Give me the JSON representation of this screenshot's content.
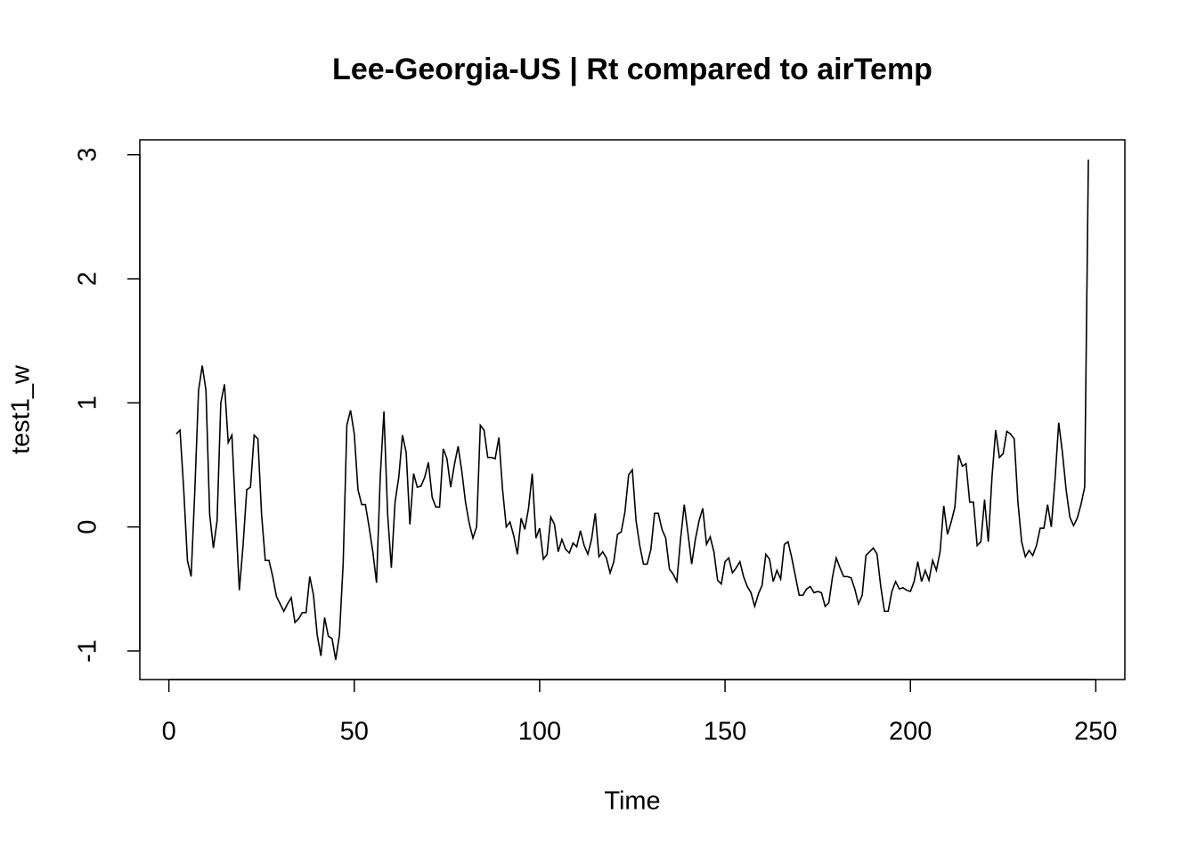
{
  "chart_data": {
    "type": "line",
    "title": "Lee-Georgia-US | Rt compared to airTemp",
    "xlabel": "Time",
    "ylabel": "test1_w",
    "x": [
      2,
      3,
      4,
      5,
      6,
      7,
      8,
      9,
      10,
      11,
      12,
      13,
      14,
      15,
      16,
      17,
      18,
      19,
      20,
      21,
      22,
      23,
      24,
      25,
      26,
      27,
      28,
      29,
      30,
      31,
      32,
      33,
      34,
      35,
      36,
      37,
      38,
      39,
      40,
      41,
      42,
      43,
      44,
      45,
      46,
      47,
      48,
      49,
      50,
      51,
      52,
      53,
      54,
      55,
      56,
      57,
      58,
      59,
      60,
      61,
      62,
      63,
      64,
      65,
      66,
      67,
      68,
      69,
      70,
      71,
      72,
      73,
      74,
      75,
      76,
      77,
      78,
      79,
      80,
      81,
      82,
      83,
      84,
      85,
      86,
      87,
      88,
      89,
      90,
      91,
      92,
      93,
      94,
      95,
      96,
      97,
      98,
      99,
      100,
      101,
      102,
      103,
      104,
      105,
      106,
      107,
      108,
      109,
      110,
      111,
      112,
      113,
      114,
      115,
      116,
      117,
      118,
      119,
      120,
      121,
      122,
      123,
      124,
      125,
      126,
      127,
      128,
      129,
      130,
      131,
      132,
      133,
      134,
      135,
      136,
      137,
      138,
      139,
      140,
      141,
      142,
      143,
      144,
      145,
      146,
      147,
      148,
      149,
      150,
      151,
      152,
      153,
      154,
      155,
      156,
      157,
      158,
      159,
      160,
      161,
      162,
      163,
      164,
      165,
      166,
      167,
      168,
      169,
      170,
      171,
      172,
      173,
      174,
      175,
      176,
      177,
      178,
      179,
      180,
      181,
      182,
      183,
      184,
      185,
      186,
      187,
      188,
      189,
      190,
      191,
      192,
      193,
      194,
      195,
      196,
      197,
      198,
      199,
      200,
      201,
      202,
      203,
      204,
      205,
      206,
      207,
      208,
      209,
      210,
      211,
      212,
      213,
      214,
      215,
      216,
      217,
      218,
      219,
      220,
      221,
      222,
      223,
      224,
      225,
      226,
      227,
      228,
      229,
      230,
      231,
      232,
      233,
      234,
      235,
      236,
      237,
      238,
      239,
      240,
      241,
      242,
      243,
      244,
      245,
      246,
      247,
      248
    ],
    "series": [
      {
        "name": "test1_w",
        "color": "#000000",
        "values": [
          0.75,
          0.78,
          0.3,
          -0.27,
          -0.4,
          0.3,
          1.1,
          1.3,
          1.1,
          0.1,
          -0.17,
          0.05,
          1.0,
          1.15,
          0.68,
          0.74,
          0.1,
          -0.51,
          -0.15,
          0.3,
          0.32,
          0.74,
          0.71,
          0.1,
          -0.27,
          -0.27,
          -0.4,
          -0.56,
          -0.62,
          -0.68,
          -0.62,
          -0.57,
          -0.77,
          -0.74,
          -0.69,
          -0.69,
          -0.4,
          -0.55,
          -0.87,
          -1.04,
          -0.73,
          -0.88,
          -0.9,
          -1.07,
          -0.87,
          -0.3,
          0.82,
          0.94,
          0.75,
          0.3,
          0.18,
          0.18,
          0.0,
          -0.2,
          -0.45,
          0.4,
          0.93,
          0.1,
          -0.33,
          0.2,
          0.4,
          0.74,
          0.6,
          0.02,
          0.43,
          0.32,
          0.33,
          0.4,
          0.52,
          0.24,
          0.16,
          0.16,
          0.63,
          0.55,
          0.32,
          0.5,
          0.65,
          0.45,
          0.2,
          0.03,
          -0.09,
          0.0,
          0.82,
          0.78,
          0.56,
          0.56,
          0.55,
          0.72,
          0.3,
          0.0,
          0.04,
          -0.07,
          -0.22,
          0.07,
          -0.02,
          0.15,
          0.43,
          -0.09,
          -0.01,
          -0.26,
          -0.22,
          0.08,
          0.02,
          -0.2,
          -0.1,
          -0.18,
          -0.21,
          -0.13,
          -0.16,
          -0.03,
          -0.15,
          -0.22,
          -0.1,
          0.11,
          -0.24,
          -0.2,
          -0.25,
          -0.37,
          -0.28,
          -0.06,
          -0.04,
          0.12,
          0.42,
          0.46,
          0.05,
          -0.15,
          -0.3,
          -0.3,
          -0.18,
          0.11,
          0.11,
          -0.02,
          -0.09,
          -0.34,
          -0.38,
          -0.44,
          -0.1,
          0.18,
          -0.05,
          -0.3,
          -0.1,
          0.05,
          0.15,
          -0.14,
          -0.08,
          -0.2,
          -0.43,
          -0.46,
          -0.28,
          -0.25,
          -0.37,
          -0.33,
          -0.28,
          -0.4,
          -0.48,
          -0.53,
          -0.64,
          -0.54,
          -0.47,
          -0.22,
          -0.26,
          -0.44,
          -0.35,
          -0.42,
          -0.14,
          -0.12,
          -0.25,
          -0.4,
          -0.55,
          -0.55,
          -0.5,
          -0.48,
          -0.53,
          -0.52,
          -0.53,
          -0.64,
          -0.61,
          -0.4,
          -0.25,
          -0.33,
          -0.4,
          -0.4,
          -0.41,
          -0.5,
          -0.62,
          -0.55,
          -0.23,
          -0.2,
          -0.17,
          -0.22,
          -0.48,
          -0.68,
          -0.68,
          -0.52,
          -0.44,
          -0.5,
          -0.49,
          -0.51,
          -0.52,
          -0.44,
          -0.28,
          -0.44,
          -0.35,
          -0.43,
          -0.27,
          -0.35,
          -0.2,
          0.17,
          -0.06,
          0.04,
          0.16,
          0.58,
          0.49,
          0.51,
          0.2,
          0.2,
          -0.15,
          -0.12,
          0.22,
          -0.12,
          0.4,
          0.78,
          0.56,
          0.59,
          0.77,
          0.75,
          0.71,
          0.2,
          -0.12,
          -0.24,
          -0.19,
          -0.23,
          -0.15,
          -0.01,
          -0.01,
          0.18,
          0.0,
          0.38,
          0.84,
          0.6,
          0.3,
          0.08,
          0.01,
          0.07,
          0.18,
          0.32,
          2.96
        ]
      }
    ],
    "xlim": [
      -7.84,
      257.84
    ],
    "xticks": [
      0,
      50,
      100,
      150,
      200,
      250
    ],
    "ylim": [
      -1.23,
      3.12
    ],
    "yticks": [
      -1,
      0,
      1,
      2,
      3
    ],
    "grid": false
  }
}
